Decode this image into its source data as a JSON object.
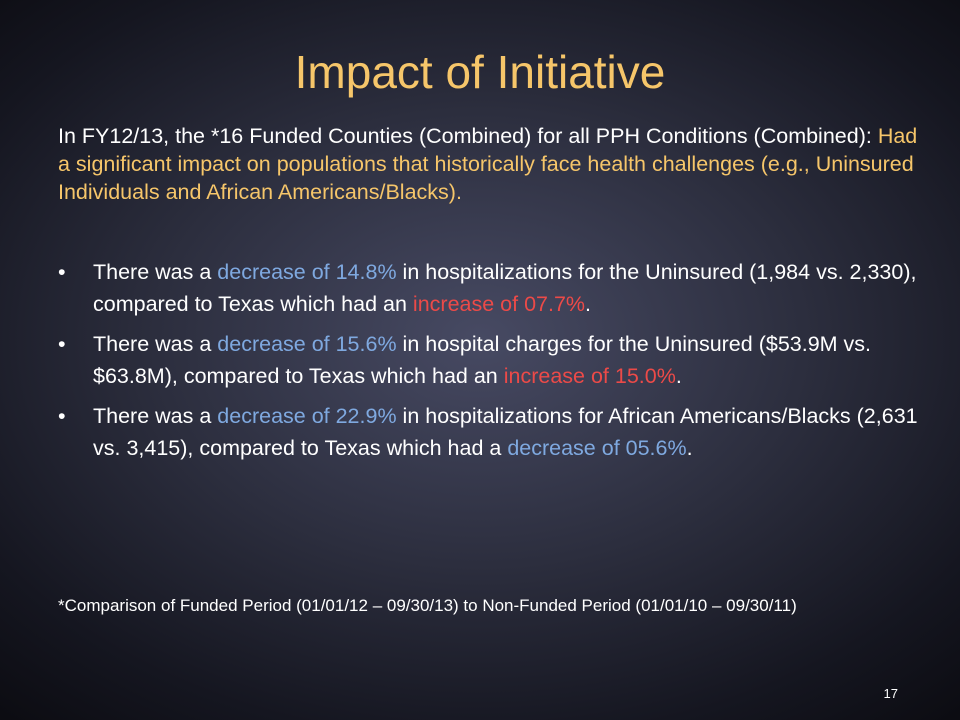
{
  "slide": {
    "title": "Impact of Initiative",
    "intro": {
      "part1": "In FY12/13, the *16 Funded Counties (Combined) for all PPH Conditions (Combined): ",
      "highlight": "Had a significant impact on populations that historically face health challenges (e.g., Uninsured Individuals and African Americans/Blacks)."
    },
    "bullet_symbol": "•",
    "bullets": [
      {
        "t1": "There was a ",
        "h1": "decrease of 14.8%",
        "t2": " in hospitalizations for the Uninsured (1,984 vs. 2,330), compared to Texas which had an ",
        "h2": "increase of 07.7%",
        "t3": "."
      },
      {
        "t1": "There was a ",
        "h1": "decrease of 15.6%",
        "t2": " in hospital charges for the Uninsured ($53.9M vs. $63.8M), compared to Texas which had an ",
        "h2": "increase of 15.0%",
        "t3": "."
      },
      {
        "t1": "There was a ",
        "h1": "decrease of 22.9%",
        "t2": " in hospitalizations for African Americans/Blacks (2,631 vs. 3,415), compared to Texas which had a ",
        "h2": "decrease of 05.6%",
        "t3": "."
      }
    ],
    "footnote": "*Comparison of Funded Period (01/01/12 – 09/30/13) to Non-Funded Period (01/01/10 – 09/30/11)",
    "page_number": "17"
  },
  "colors": {
    "title": "#f6c66a",
    "highlight_yellow": "#f6c66a",
    "highlight_blue": "#7fa9e0",
    "highlight_red": "#ec4a48",
    "body_text": "#ffffff"
  }
}
